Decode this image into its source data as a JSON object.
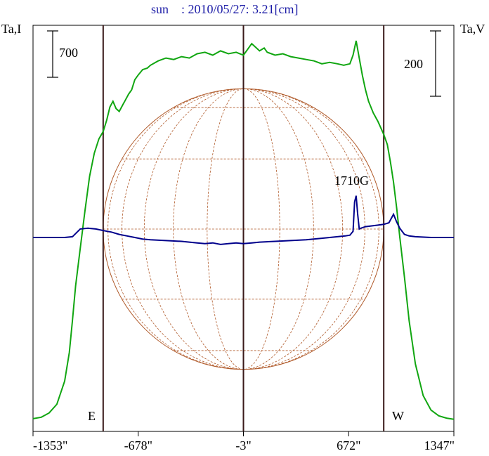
{
  "chart_data": {
    "type": "line",
    "title": "sun    : 2010/05/27: 3.21[cm]",
    "ylabel_left": "Ta,I",
    "ylabel_right": "Ta,V",
    "scale_left_label": "700",
    "scale_right_label": "200",
    "xlim": [
      -1353,
      1347
    ],
    "x_tick_labels": [
      "-1353\"",
      "-678\"",
      "-3\"",
      "672\"",
      "1347\""
    ],
    "x_ticks": [
      -1353,
      -678,
      -3,
      672,
      1347
    ],
    "limb_lines": [
      -903,
      -3,
      897
    ],
    "limb_labels": {
      "east": "E",
      "west": "W"
    },
    "annotation": {
      "text": "1710G",
      "x": 722
    },
    "grid": false,
    "colors": {
      "intensity": "#11a611",
      "polarization": "#00008b",
      "disk": "#b05a2a",
      "limb": "#3a1a1a",
      "title": "#1a1aa6"
    },
    "series": [
      {
        "key": "intensity",
        "x": [
          -1353,
          -1300,
          -1250,
          -1200,
          -1150,
          -1120,
          -1100,
          -1080,
          -1050,
          -1020,
          -990,
          -960,
          -930,
          -903,
          -880,
          -860,
          -840,
          -820,
          -800,
          -780,
          -760,
          -740,
          -720,
          -700,
          -680,
          -650,
          -620,
          -600,
          -550,
          -500,
          -450,
          -400,
          -350,
          -300,
          -250,
          -200,
          -150,
          -100,
          -50,
          -3,
          50,
          100,
          130,
          150,
          200,
          250,
          300,
          350,
          400,
          450,
          500,
          550,
          600,
          640,
          680,
          700,
          720,
          740,
          760,
          780,
          800,
          830,
          860,
          897,
          920,
          940,
          960,
          980,
          1000,
          1030,
          1060,
          1100,
          1150,
          1200,
          1250,
          1300,
          1347
        ],
        "values": [
          10,
          15,
          30,
          60,
          140,
          240,
          350,
          470,
          600,
          730,
          850,
          930,
          980,
          1005,
          1045,
          1090,
          1110,
          1085,
          1075,
          1095,
          1115,
          1135,
          1150,
          1185,
          1200,
          1220,
          1225,
          1235,
          1250,
          1260,
          1255,
          1265,
          1260,
          1275,
          1280,
          1270,
          1285,
          1275,
          1280,
          1270,
          1310,
          1285,
          1295,
          1280,
          1270,
          1275,
          1265,
          1260,
          1255,
          1250,
          1240,
          1245,
          1240,
          1235,
          1240,
          1270,
          1320,
          1260,
          1200,
          1150,
          1110,
          1070,
          1040,
          995,
          960,
          900,
          830,
          740,
          640,
          500,
          350,
          200,
          90,
          40,
          20,
          12,
          8
        ]
      },
      {
        "key": "polarization",
        "x": [
          -1353,
          -1250,
          -1150,
          -1100,
          -1050,
          -1000,
          -950,
          -903,
          -850,
          -800,
          -750,
          -700,
          -650,
          -600,
          -500,
          -400,
          -300,
          -250,
          -200,
          -150,
          -100,
          -50,
          -3,
          50,
          100,
          200,
          300,
          400,
          500,
          550,
          600,
          650,
          680,
          700,
          710,
          720,
          730,
          740,
          750,
          780,
          820,
          860,
          897,
          930,
          960,
          980,
          1000,
          1030,
          1060,
          1100,
          1200,
          1347
        ],
        "values": [
          0,
          0,
          0,
          5,
          55,
          60,
          55,
          45,
          35,
          20,
          10,
          0,
          -10,
          -15,
          -20,
          -25,
          -35,
          -40,
          -35,
          -45,
          -40,
          -35,
          -40,
          -35,
          -30,
          -25,
          -20,
          -15,
          -5,
          0,
          5,
          10,
          15,
          40,
          230,
          270,
          150,
          55,
          60,
          70,
          75,
          80,
          85,
          95,
          150,
          100,
          60,
          20,
          10,
          5,
          0,
          0
        ]
      }
    ]
  }
}
